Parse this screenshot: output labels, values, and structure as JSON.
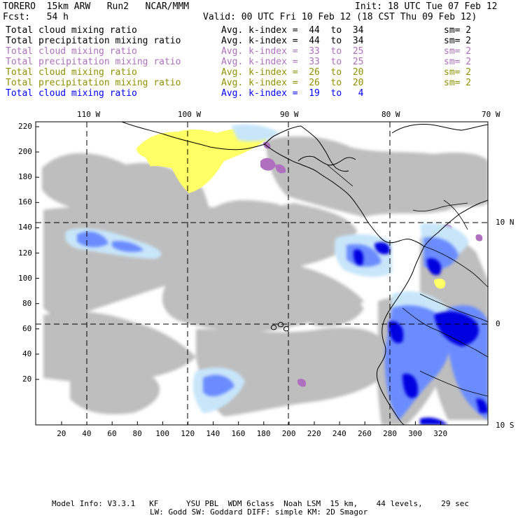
{
  "header": {
    "model": "TORERO  15km ARW   Run2   NCAR/MMM",
    "init": "Init: 18 UTC Tue 07 Feb 12",
    "fcst": "Fcst:   54 h",
    "valid": "Valid: 00 UTC Fri 10 Feb 12 (18 CST Thu 09 Feb 12)"
  },
  "legend": [
    {
      "field": "Total cloud mixing ratio",
      "kindex": "Avg. k-index =  44  to  34",
      "sm": "sm= 2",
      "color": "#000000"
    },
    {
      "field": "Total precipitation mixing ratio",
      "kindex": "Avg. k-index =  44  to  34",
      "sm": "sm= 2",
      "color": "#000000"
    },
    {
      "field": "Total cloud mixing ratio",
      "kindex": "Avg. k-index =  33  to  25",
      "sm": "sm= 2",
      "color": "#b070c0"
    },
    {
      "field": "Total precipitation mixing ratio",
      "kindex": "Avg. k-index =  33  to  25",
      "sm": "sm= 2",
      "color": "#b070c0"
    },
    {
      "field": "Total cloud mixing ratio",
      "kindex": "Avg. k-index =  26  to  20",
      "sm": "sm= 2",
      "color": "#909000"
    },
    {
      "field": "Total precipitation mixing ratio",
      "kindex": "Avg. k-index =  26  to  20",
      "sm": "sm= 2",
      "color": "#909000"
    },
    {
      "field": "Total cloud mixing ratio",
      "kindex": "Avg. k-index =  19  to   4",
      "sm": "",
      "color": "#0000ff"
    }
  ],
  "axes": {
    "top_lon": [
      "110 W",
      "100 W",
      "90 W",
      "80 W",
      "70 W"
    ],
    "right_lat": [
      "10 N",
      "0",
      "10 S"
    ],
    "left_y": [
      "220",
      "200",
      "180",
      "160",
      "140",
      "120",
      "100",
      "80",
      "60",
      "40",
      "20"
    ],
    "bottom_x": [
      "20",
      "40",
      "60",
      "80",
      "100",
      "120",
      "140",
      "160",
      "180",
      "200",
      "220",
      "240",
      "260",
      "280",
      "300",
      "320"
    ]
  },
  "footer": {
    "line1": "Model Info: V3.3.1   KF      YSU PBL  WDM 6class  Noah LSM  15 km,    44 levels,    29 sec",
    "line2": "LW: Godd SW: Goddard DIFF: simple KM: 2D Smagor"
  },
  "colors": {
    "cloud_gray": "#bebebe",
    "light_blue": "#c8e6fa",
    "mid_blue": "#6a8cff",
    "deep_blue": "#0000e0",
    "purple": "#b070c0",
    "yellow": "#ffff66"
  }
}
